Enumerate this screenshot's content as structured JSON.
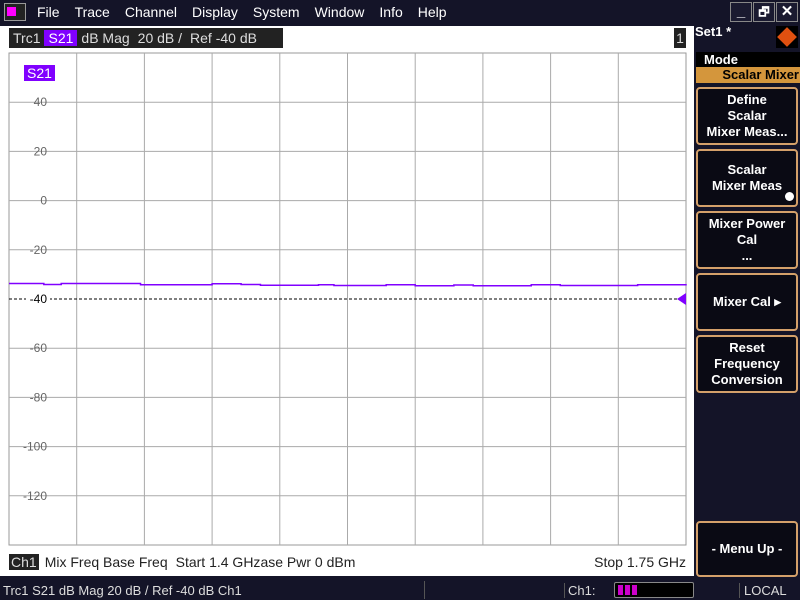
{
  "menubar": {
    "items": [
      "File",
      "Trace",
      "Channel",
      "Display",
      "System",
      "Window",
      "Info",
      "Help"
    ]
  },
  "window_controls": {
    "minimize": "_",
    "restore": "🗗",
    "close": "✕"
  },
  "trace_header": {
    "trace": "Trc1",
    "param": "S21",
    "format": "dB Mag",
    "scale": "20 dB /",
    "ref": "Ref -40 dB"
  },
  "channel_number": "1",
  "trace_label": "S21",
  "colors": {
    "trace": "#8000ff",
    "softkey_border": "#d4a06a",
    "mode_bar": "#d4963c",
    "ref_marker": "#8000ff"
  },
  "chart_data": {
    "type": "line",
    "ylim": [
      -140,
      60
    ],
    "yticks": [
      40,
      20,
      0,
      -20,
      -40,
      -60,
      -80,
      -100,
      -120
    ],
    "ytick_labels": [
      "40",
      "20",
      "0",
      "-20",
      "-40",
      "-60",
      "-80",
      "-100",
      "-120"
    ],
    "reference_level": -40,
    "x_range_ghz": [
      1.4,
      1.75
    ],
    "grid": true,
    "series": [
      {
        "name": "S21",
        "x": [
          1.4,
          1.418,
          1.427,
          1.455,
          1.468,
          1.49,
          1.505,
          1.52,
          1.53,
          1.56,
          1.568,
          1.595,
          1.61,
          1.63,
          1.64,
          1.67,
          1.685,
          1.71,
          1.725,
          1.75
        ],
        "values": [
          -33.7,
          -34.1,
          -33.7,
          -33.7,
          -34.2,
          -34.2,
          -33.8,
          -34.1,
          -34.4,
          -34.2,
          -34.5,
          -34.2,
          -34.6,
          -34.3,
          -34.6,
          -34.2,
          -34.5,
          -34.5,
          -34.2,
          -34.5
        ]
      }
    ]
  },
  "channel_footer": {
    "channel": "Ch1",
    "sweep": "Mix Freq Base Freq",
    "start": "Start  1.4 GHz",
    "power": "ase Pwr   0 dBm",
    "stop": "Stop  1.75 GHz"
  },
  "right_panel": {
    "set_name": "Set1 *",
    "mode_label": "Mode",
    "mode_value": "Scalar Mixer",
    "softkeys": [
      {
        "lines": [
          "Define",
          "Scalar",
          "Mixer Meas..."
        ]
      },
      {
        "lines": [
          "Scalar",
          "Mixer Meas"
        ],
        "radio": true
      },
      {
        "lines": [
          "Mixer Power",
          "Cal",
          "..."
        ]
      },
      {
        "lines": [
          "Mixer Cal ▸"
        ]
      },
      {
        "lines": [
          "Reset",
          "Frequency",
          "Conversion"
        ]
      }
    ],
    "menu_up": "- Menu Up -"
  },
  "status_bar": {
    "trace_info": "Trc1   S21   dB Mag   20 dB / Ref -40 dB   Ch1",
    "ch_label": "Ch1:",
    "mode": "LOCAL"
  }
}
